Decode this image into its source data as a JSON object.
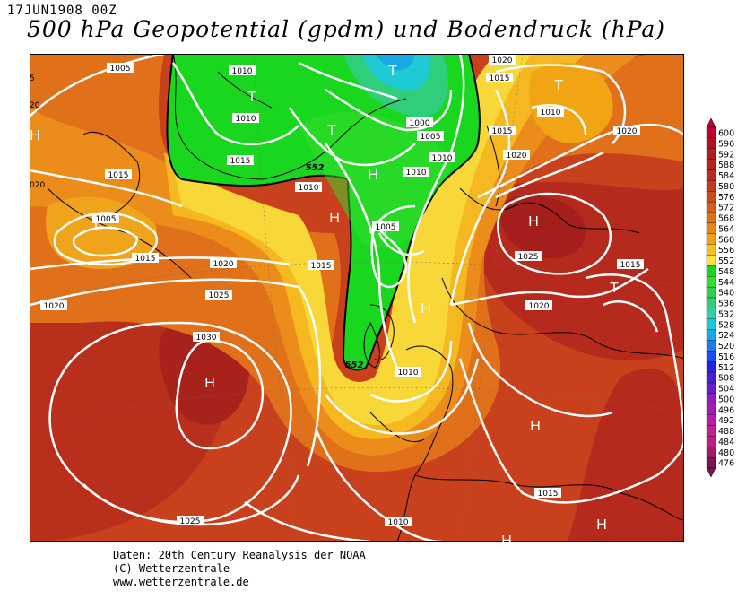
{
  "header": {
    "date": "17JUN1908 00Z",
    "title": "500 hPa Geopotential (gpdm) und Bodendruck (hPa)"
  },
  "footer": {
    "line1": "Daten: 20th Century Reanalysis der NOAA",
    "line2": "(C) Wetterzentrale",
    "line3": "www.wetterzentrale.de"
  },
  "legend": {
    "levels": [
      "600",
      "596",
      "592",
      "588",
      "584",
      "580",
      "576",
      "572",
      "568",
      "564",
      "560",
      "556",
      "552",
      "548",
      "544",
      "540",
      "536",
      "532",
      "528",
      "524",
      "520",
      "516",
      "512",
      "508",
      "504",
      "500",
      "496",
      "492",
      "488",
      "484",
      "480",
      "476"
    ],
    "colors": [
      "#c0002e",
      "#b50f1f",
      "#ad1d1d",
      "#b4231e",
      "#bb2c1e",
      "#c33a1c",
      "#cd4b1b",
      "#d75d19",
      "#e07017",
      "#e98615",
      "#f1a114",
      "#f8c21e",
      "#fbe23c",
      "#19d61f",
      "#33dd2d",
      "#2ed04e",
      "#2ece7a",
      "#2bd2a8",
      "#1ecbd4",
      "#19a7e8",
      "#1a7ef0",
      "#1a4ef2",
      "#2323e6",
      "#4620d8",
      "#6a1fcc",
      "#8c1ebe",
      "#a51cb2",
      "#b91ca4",
      "#c61c93",
      "#c01d80",
      "#a21a6a",
      "#7c1650"
    ]
  },
  "isobars": [
    {
      "label": "1005"
    },
    {
      "label": "1010"
    },
    {
      "label": "1010"
    },
    {
      "label": "1020"
    },
    {
      "label": "1015"
    },
    {
      "label": "1000"
    },
    {
      "label": "1005"
    },
    {
      "label": "1010"
    },
    {
      "label": "1015"
    },
    {
      "label": "1020"
    },
    {
      "label": "1020"
    },
    {
      "label": "1015"
    },
    {
      "label": "1010"
    },
    {
      "label": "1005"
    },
    {
      "label": "1015"
    },
    {
      "label": "1015"
    },
    {
      "label": "1020"
    },
    {
      "label": "1025"
    },
    {
      "label": "1020"
    },
    {
      "label": "1030"
    },
    {
      "label": "1025"
    },
    {
      "label": "1015"
    },
    {
      "label": "1010"
    },
    {
      "label": "1005"
    },
    {
      "label": "1010"
    },
    {
      "label": "1015"
    },
    {
      "label": "1020"
    },
    {
      "label": "1025"
    },
    {
      "label": "1010"
    },
    {
      "label": "1015"
    },
    {
      "label": "1010"
    },
    {
      "label": "1015"
    }
  ],
  "centers": [
    {
      "mark": "T"
    },
    {
      "mark": "T"
    },
    {
      "mark": "T"
    },
    {
      "mark": "T"
    },
    {
      "mark": "T"
    },
    {
      "mark": "T"
    },
    {
      "mark": "T"
    },
    {
      "mark": "H"
    },
    {
      "mark": "H"
    },
    {
      "mark": "H"
    },
    {
      "mark": "H"
    },
    {
      "mark": "H"
    },
    {
      "mark": "H"
    },
    {
      "mark": "H"
    },
    {
      "mark": "H"
    },
    {
      "mark": "H"
    }
  ],
  "contour_labels": [
    {
      "label": "552"
    },
    {
      "label": "552"
    }
  ],
  "edge_labels": [
    {
      "label": "5"
    },
    {
      "label": "20"
    },
    {
      "label": "020"
    }
  ]
}
